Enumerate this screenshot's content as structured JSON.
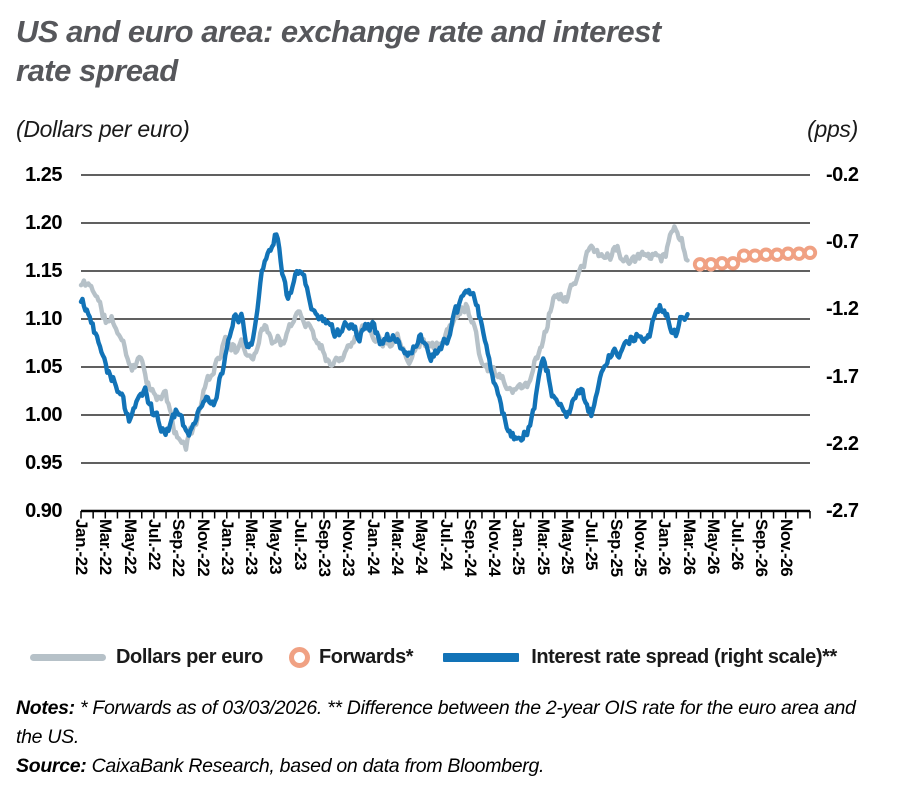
{
  "header": {
    "title": "US and euro area: exchange rate and interest rate spread",
    "title_line1": "US and euro area: exchange rate and interest",
    "title_line2": "rate spread",
    "left_unit": "(Dollars per euro)",
    "right_unit": "(pps)"
  },
  "colors": {
    "title_gray": "#56575b",
    "dollars_line": "#b6c1c8",
    "spread_line": "#1273b7",
    "forwards_orange": "#f0a183",
    "axis_black": "#000000"
  },
  "chart_data": {
    "type": "line",
    "title": "US and euro area: exchange rate and interest rate spread",
    "x_start": "Jan-2022",
    "x_freq": "monthly",
    "x_tick_labels": [
      "Jan.-22",
      "Mar.-22",
      "May-22",
      "Jul.-22",
      "Sep.-22",
      "Nov.-22",
      "Jan.-23",
      "Mar.-23",
      "May-23",
      "Jul.-23",
      "Sep.-23",
      "Nov.-23",
      "Jan.-24",
      "Mar.-24",
      "May-24",
      "Jul.-24",
      "Sep.-24",
      "Nov.-24",
      "Jan.-25",
      "Mar.-25",
      "May-25",
      "Jul.-25",
      "Sep.-25",
      "Nov.-25",
      "Jan.-26",
      "Mar.-26",
      "May-26",
      "Jul.-26",
      "Sep.-26",
      "Nov.-26"
    ],
    "left_axis": {
      "label": "(Dollars per euro)",
      "min": 0.9,
      "max": 1.25,
      "tick_labels": [
        "1.25",
        "1.20",
        "1.15",
        "1.10",
        "1.05",
        "1.00",
        "0.95",
        "0.90"
      ]
    },
    "right_axis": {
      "label": "(pps)",
      "min": -2.7,
      "max": -0.2,
      "tick_labels": [
        "-0.2",
        "-0.7",
        "-1.2",
        "-1.7",
        "-2.2",
        "-2.7"
      ]
    },
    "grid": "horizontal",
    "legend_position": "bottom",
    "series": [
      {
        "name": "Dollars per euro",
        "axis": "left",
        "style": "noisy-line",
        "monthly_values": [
          1.135,
          1.132,
          1.1,
          1.088,
          1.056,
          1.06,
          1.02,
          1.015,
          0.972,
          0.978,
          1.02,
          1.055,
          1.078,
          1.068,
          1.066,
          1.092,
          1.08,
          1.083,
          1.105,
          1.09,
          1.068,
          1.057,
          1.08,
          1.092,
          1.088,
          1.08,
          1.086,
          1.068,
          1.082,
          1.072,
          1.083,
          1.102,
          1.113,
          1.062,
          1.05,
          1.036,
          1.028,
          1.042,
          1.08,
          1.128,
          1.122,
          1.15,
          1.17,
          1.162,
          1.172,
          1.156,
          1.16,
          1.168,
          1.172,
          1.192,
          1.166
        ]
      },
      {
        "name": "Interest rate spread (right scale)",
        "axis": "right",
        "style": "noisy-line",
        "monthly_values": [
          -1.15,
          -1.32,
          -1.55,
          -1.75,
          -2.02,
          -1.8,
          -2.0,
          -2.1,
          -1.95,
          -2.1,
          -1.85,
          -1.9,
          -1.55,
          -1.25,
          -1.45,
          -0.85,
          -0.63,
          -1.05,
          -0.95,
          -1.2,
          -1.3,
          -1.35,
          -1.28,
          -1.35,
          -1.35,
          -1.45,
          -1.45,
          -1.52,
          -1.45,
          -1.5,
          -1.4,
          -1.25,
          -1.06,
          -1.35,
          -1.8,
          -2.05,
          -2.15,
          -2.1,
          -1.7,
          -1.9,
          -1.92,
          -1.8,
          -2.0,
          -1.65,
          -1.5,
          -1.4,
          -1.35,
          -1.3,
          -1.2,
          -1.35,
          -1.25
        ]
      },
      {
        "name": "Forwards",
        "axis": "left",
        "style": "circles",
        "start_month_index": 51,
        "monthly_values": [
          1.157,
          1.157,
          1.158,
          1.158,
          1.166,
          1.166,
          1.167,
          1.167,
          1.168,
          1.168,
          1.169
        ]
      }
    ],
    "noise_amplitude": {
      "dollars": 0.008,
      "spread": 0.06
    }
  },
  "legend": {
    "items": [
      {
        "label": "Dollars per euro",
        "swatch": "line"
      },
      {
        "label": "Forwards*",
        "swatch": "circle"
      },
      {
        "label": "Interest rate spread (right scale)**",
        "swatch": "line"
      }
    ]
  },
  "notes": {
    "label": "Notes:",
    "text": " * Forwards as of 03/03/2026. ** Difference between the 2-year OIS rate for the euro area and the US."
  },
  "source": {
    "label": "Source:",
    "text": " CaixaBank Research, based on data from Bloomberg."
  }
}
